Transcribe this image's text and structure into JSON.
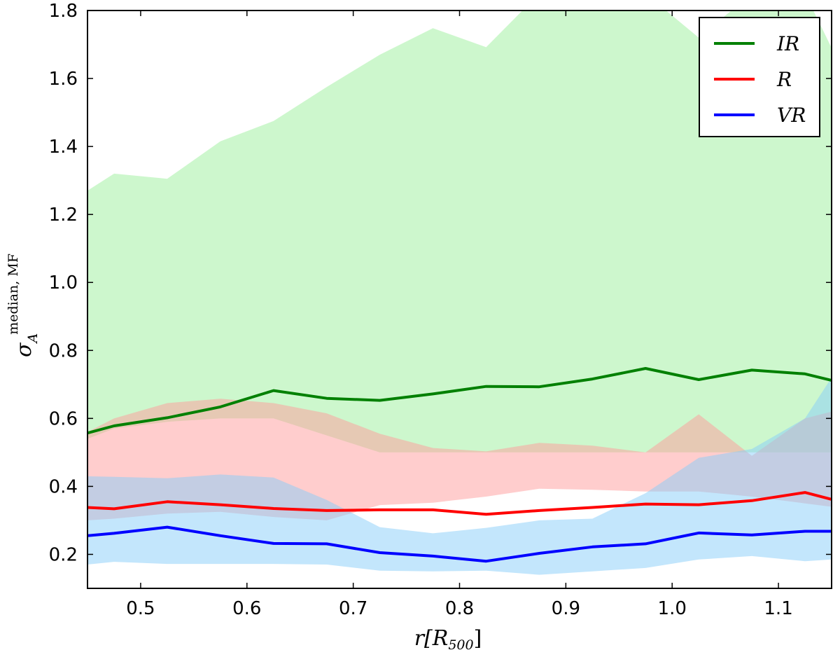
{
  "chart_data": {
    "type": "line",
    "title": "",
    "xlabel": {
      "main": "r[R",
      "sub": "500",
      "close": "]"
    },
    "ylabel": {
      "main": "σ",
      "sub": "A",
      "sup": "median, MF"
    },
    "xlim": [
      0.45,
      1.15
    ],
    "ylim": [
      0.1,
      1.8
    ],
    "x_ticks": [
      0.5,
      0.6,
      0.7,
      0.8,
      0.9,
      1.0,
      1.1
    ],
    "x_tick_labels": [
      "0.5",
      "0.6",
      "0.7",
      "0.8",
      "0.9",
      "1.0",
      "1.1"
    ],
    "y_ticks": [
      0.2,
      0.4,
      0.6,
      0.8,
      1.0,
      1.2,
      1.4,
      1.6,
      1.8
    ],
    "y_tick_labels": [
      "0.2",
      "0.4",
      "0.6",
      "0.8",
      "1.0",
      "1.2",
      "1.4",
      "1.6",
      "1.8"
    ],
    "grid": false,
    "legend_position": "top-right",
    "x": [
      0.45,
      0.475,
      0.525,
      0.575,
      0.625,
      0.675,
      0.725,
      0.775,
      0.825,
      0.875,
      0.925,
      0.975,
      1.025,
      1.075,
      1.125,
      1.15
    ],
    "series": [
      {
        "name": "IR",
        "color": "#008000",
        "band_color": "#90EE90",
        "values": [
          0.557,
          0.578,
          0.602,
          0.634,
          0.682,
          0.659,
          0.653,
          0.672,
          0.694,
          0.693,
          0.716,
          0.747,
          0.714,
          0.742,
          0.731,
          0.712
        ],
        "upper": [
          1.27,
          1.32,
          1.305,
          1.415,
          1.475,
          1.575,
          1.67,
          1.748,
          1.692,
          1.85,
          1.85,
          1.85,
          1.72,
          1.85,
          1.85,
          1.69
        ],
        "lower": [
          0.54,
          0.57,
          0.59,
          0.6,
          0.6,
          0.55,
          0.5,
          0.5,
          0.5,
          0.5,
          0.5,
          0.5,
          0.5,
          0.5,
          0.5,
          0.5
        ]
      },
      {
        "name": "R",
        "color": "#ff0000",
        "band_color": "#ff9c9c",
        "values": [
          0.338,
          0.334,
          0.355,
          0.346,
          0.335,
          0.329,
          0.331,
          0.331,
          0.318,
          0.329,
          0.338,
          0.348,
          0.346,
          0.358,
          0.382,
          0.362
        ],
        "upper": [
          0.56,
          0.6,
          0.645,
          0.658,
          0.645,
          0.615,
          0.555,
          0.513,
          0.503,
          0.528,
          0.52,
          0.5,
          0.612,
          0.49,
          0.6,
          0.62
        ],
        "lower": [
          0.3,
          0.305,
          0.32,
          0.325,
          0.31,
          0.3,
          0.345,
          0.352,
          0.37,
          0.393,
          0.39,
          0.385,
          0.385,
          0.37,
          0.35,
          0.34
        ]
      },
      {
        "name": "VR",
        "color": "#0000ff",
        "band_color": "#87CEFA",
        "values": [
          0.255,
          0.262,
          0.28,
          0.255,
          0.232,
          0.231,
          0.205,
          0.195,
          0.18,
          0.203,
          0.222,
          0.231,
          0.263,
          0.257,
          0.268,
          0.268
        ],
        "upper": [
          0.43,
          0.428,
          0.424,
          0.435,
          0.426,
          0.36,
          0.28,
          0.262,
          0.278,
          0.3,
          0.305,
          0.38,
          0.484,
          0.51,
          0.6,
          0.72
        ],
        "lower": [
          0.17,
          0.178,
          0.172,
          0.172,
          0.172,
          0.17,
          0.152,
          0.15,
          0.152,
          0.14,
          0.15,
          0.16,
          0.185,
          0.195,
          0.18,
          0.185
        ]
      }
    ]
  }
}
